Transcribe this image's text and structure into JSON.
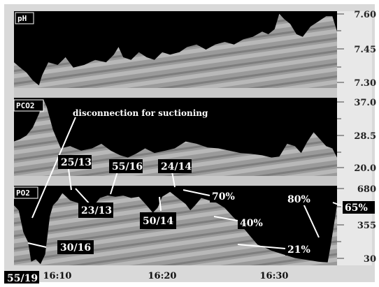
{
  "chart_data": [
    {
      "type": "area",
      "panel_label": "pH",
      "yticks": [
        "7.60",
        "7.45",
        "7.30"
      ],
      "ylim": [
        7.3,
        7.6
      ],
      "series": [
        {
          "values": [
            [
              0,
              7.4
            ],
            [
              8,
              7.38
            ],
            [
              16,
              7.36
            ],
            [
              24,
              7.33
            ],
            [
              32,
              7.31
            ],
            [
              36,
              7.35
            ],
            [
              44,
              7.4
            ],
            [
              56,
              7.39
            ],
            [
              66,
              7.42
            ],
            [
              76,
              7.38
            ],
            [
              90,
              7.39
            ],
            [
              104,
              7.41
            ],
            [
              118,
              7.4
            ],
            [
              128,
              7.43
            ],
            [
              134,
              7.46
            ],
            [
              140,
              7.42
            ],
            [
              150,
              7.41
            ],
            [
              160,
              7.44
            ],
            [
              170,
              7.42
            ],
            [
              180,
              7.41
            ],
            [
              190,
              7.44
            ],
            [
              200,
              7.43
            ],
            [
              212,
              7.44
            ],
            [
              222,
              7.46
            ],
            [
              234,
              7.47
            ],
            [
              246,
              7.45
            ],
            [
              258,
              7.47
            ],
            [
              270,
              7.48
            ],
            [
              282,
              7.47
            ],
            [
              294,
              7.49
            ],
            [
              306,
              7.5
            ],
            [
              318,
              7.52
            ],
            [
              326,
              7.51
            ],
            [
              334,
              7.53
            ],
            [
              340,
              7.59
            ],
            [
              346,
              7.57
            ],
            [
              354,
              7.55
            ],
            [
              362,
              7.51
            ],
            [
              370,
              7.5
            ],
            [
              380,
              7.54
            ],
            [
              390,
              7.56
            ],
            [
              400,
              7.58
            ],
            [
              408,
              7.58
            ],
            [
              414,
              7.52
            ]
          ]
        }
      ]
    },
    {
      "type": "area",
      "panel_label": "PCO2",
      "yticks": [
        "37.0",
        "28.5",
        "20.0"
      ],
      "ylim": [
        20.0,
        37.0
      ],
      "series": [
        {
          "values": [
            [
              0,
              27.5
            ],
            [
              8,
              28.0
            ],
            [
              16,
              28.8
            ],
            [
              24,
              30.5
            ],
            [
              32,
              33.5
            ],
            [
              38,
              36.5
            ],
            [
              42,
              35.0
            ],
            [
              50,
              30.0
            ],
            [
              60,
              26.0
            ],
            [
              72,
              26.5
            ],
            [
              86,
              25.5
            ],
            [
              100,
              26.0
            ],
            [
              112,
              27.0
            ],
            [
              124,
              25.5
            ],
            [
              136,
              24.5
            ],
            [
              146,
              24.0
            ],
            [
              156,
              24.8
            ],
            [
              168,
              26.0
            ],
            [
              180,
              25.0
            ],
            [
              194,
              25.5
            ],
            [
              206,
              26.0
            ],
            [
              220,
              27.5
            ],
            [
              234,
              27.0
            ],
            [
              248,
              26.2
            ],
            [
              262,
              26.0
            ],
            [
              276,
              25.5
            ],
            [
              290,
              25.0
            ],
            [
              304,
              24.8
            ],
            [
              318,
              24.5
            ],
            [
              330,
              24.0
            ],
            [
              340,
              24.2
            ],
            [
              350,
              27.0
            ],
            [
              360,
              26.5
            ],
            [
              368,
              25.0
            ],
            [
              376,
              27.5
            ],
            [
              384,
              29.5
            ],
            [
              392,
              28.0
            ],
            [
              400,
              26.5
            ],
            [
              408,
              26.0
            ],
            [
              414,
              24.0
            ]
          ]
        }
      ]
    },
    {
      "type": "area",
      "panel_label": "PO2",
      "yticks": [
        "680",
        "355",
        "30"
      ],
      "ylim": [
        30,
        680
      ],
      "series": [
        {
          "values": [
            [
              0,
              520
            ],
            [
              6,
              480
            ],
            [
              12,
              300
            ],
            [
              18,
              220
            ],
            [
              22,
              60
            ],
            [
              28,
              80
            ],
            [
              34,
              40
            ],
            [
              40,
              120
            ],
            [
              46,
              430
            ],
            [
              50,
              520
            ],
            [
              56,
              560
            ],
            [
              62,
              620
            ],
            [
              72,
              560
            ],
            [
              82,
              540
            ],
            [
              92,
              470
            ],
            [
              100,
              500
            ],
            [
              110,
              580
            ],
            [
              120,
              600
            ],
            [
              130,
              590
            ],
            [
              140,
              600
            ],
            [
              150,
              580
            ],
            [
              160,
              590
            ],
            [
              170,
              520
            ],
            [
              178,
              460
            ],
            [
              184,
              500
            ],
            [
              190,
              590
            ],
            [
              200,
              630
            ],
            [
              210,
              580
            ],
            [
              220,
              530
            ],
            [
              226,
              480
            ],
            [
              232,
              520
            ],
            [
              240,
              580
            ],
            [
              250,
              560
            ],
            [
              260,
              540
            ],
            [
              270,
              500
            ],
            [
              280,
              430
            ],
            [
              288,
              380
            ],
            [
              296,
              320
            ],
            [
              304,
              260
            ],
            [
              312,
              200
            ],
            [
              320,
              180
            ],
            [
              330,
              150
            ],
            [
              340,
              130
            ],
            [
              350,
              110
            ],
            [
              360,
              90
            ],
            [
              370,
              80
            ],
            [
              380,
              70
            ],
            [
              390,
              60
            ],
            [
              396,
              56
            ],
            [
              402,
              54
            ],
            [
              406,
              200
            ],
            [
              410,
              360
            ],
            [
              414,
              520
            ]
          ]
        }
      ]
    }
  ],
  "x_ticks": [
    "16:10",
    "16:20",
    "16:30"
  ],
  "left_value": "55/19",
  "annotations": {
    "note": "disconnection for suctioning",
    "a_25_13": "25/13",
    "a_55_16": "55/16",
    "a_24_14": "24/14",
    "a_23_13": "23/13",
    "a_50_14": "50/14",
    "a_30_16": "30/16",
    "a_70": "70%",
    "a_40": "40%",
    "a_21": "21%",
    "a_80": "80%",
    "a_65": "65%"
  }
}
